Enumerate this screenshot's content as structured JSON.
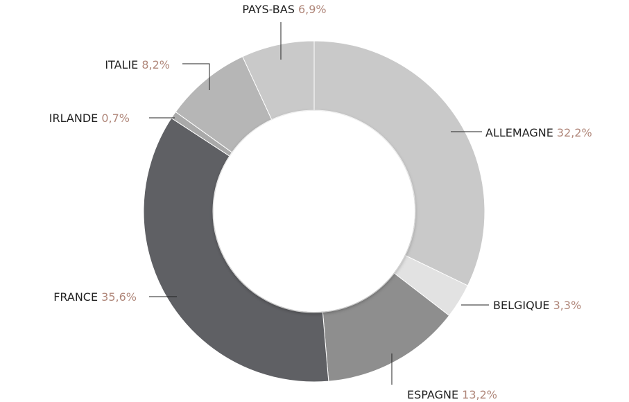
{
  "chart_data": {
    "type": "donut",
    "categories": [
      "ALLEMAGNE",
      "BELGIQUE",
      "ESPAGNE",
      "FRANCE",
      "IRLANDE",
      "ITALIE",
      "PAYS-BAS"
    ],
    "values": [
      32.2,
      3.3,
      13.2,
      35.6,
      0.7,
      8.2,
      6.9
    ],
    "value_labels": [
      "32,2%",
      "3,3%",
      "13,2%",
      "35,6%",
      "0,7%",
      "8,2%",
      "6,9%"
    ],
    "colors": [
      "#c9c9c9",
      "#e2e2e2",
      "#8e8e8e",
      "#5f6064",
      "#a9a9a9",
      "#b6b6b6",
      "#c9c9c9"
    ]
  }
}
